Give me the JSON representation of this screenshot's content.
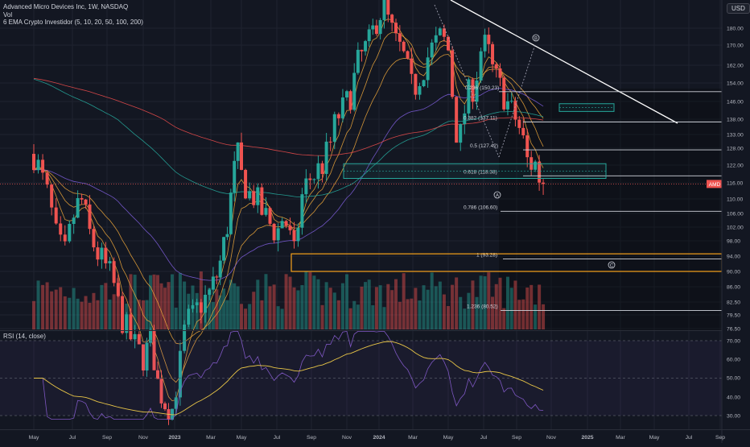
{
  "header": {
    "symbol_title": "Advanced Micro Devices Inc, 1W, NASDAQ",
    "volume_label": "Vol",
    "ema_label": "6 EMA Crypto Investidor (5, 10, 20, 50, 100, 200)",
    "currency": "USD"
  },
  "rsi_label": "RSI (14, close)",
  "ticker_badge": "AMD",
  "last_price": "115.58",
  "colors": {
    "background": "#131722",
    "up": "#26a69a",
    "down": "#ef5350",
    "white": "#ffffff",
    "fib_line": "#d1d4dc",
    "zone_orange": "#f7a21b",
    "rsi_line": "#7e57c2",
    "rsi_ma": "#e8c547",
    "ema_yellow": "#e8a33a",
    "ema_purple": "#7b5cd6",
    "ema_teal": "#26a69a",
    "ema_red": "#e84b4b"
  },
  "chart_data": [
    {
      "type": "candlestick",
      "title": "Advanced Micro Devices Inc, 1W, NASDAQ",
      "y_axis_ticks": [
        "180.00",
        "170.00",
        "162.00",
        "154.00",
        "146.00",
        "138.00",
        "133.00",
        "128.00",
        "122.00",
        "116.00",
        "110.00",
        "106.00",
        "102.00",
        "98.00",
        "94.00",
        "90.00",
        "86.00",
        "82.50",
        "79.50",
        "76.50"
      ],
      "x_axis_ticks": [
        "May",
        "Jul",
        "Sep",
        "Nov",
        "2023",
        "Mar",
        "May",
        "Jul",
        "Sep",
        "Nov",
        "2024",
        "Mar",
        "May",
        "Jul",
        "Sep",
        "Nov",
        "2025",
        "Mar",
        "May",
        "Jul",
        "Sep"
      ],
      "fibonacci": [
        {
          "ratio": "0.236",
          "value": "150.23",
          "label": "0.236 (150.23)"
        },
        {
          "ratio": "0.382",
          "value": "137.11",
          "label": "0.382 (137.11)"
        },
        {
          "ratio": "0.5",
          "value": "127.42",
          "label": "0.5 (127.42)"
        },
        {
          "ratio": "0.618",
          "value": "118.38",
          "label": "0.618 (118.38)"
        },
        {
          "ratio": "0.786",
          "value": "106.60",
          "label": "0.786 (106.60)"
        },
        {
          "ratio": "1",
          "value": "93.28",
          "label": "1 (93.28)"
        },
        {
          "ratio": "1.236",
          "value": "80.52",
          "label": "1.236 (80.52)"
        }
      ],
      "wave_labels": [
        "A",
        "B",
        "C"
      ],
      "last_price": 115.58,
      "emas": [
        "5",
        "10",
        "20",
        "50",
        "100",
        "200"
      ]
    },
    {
      "type": "line",
      "title": "RSI (14, close)",
      "y_axis_ticks": [
        "70.00",
        "60.00",
        "50.00",
        "40.00",
        "30.00"
      ],
      "ylim": [
        26,
        76
      ]
    }
  ]
}
